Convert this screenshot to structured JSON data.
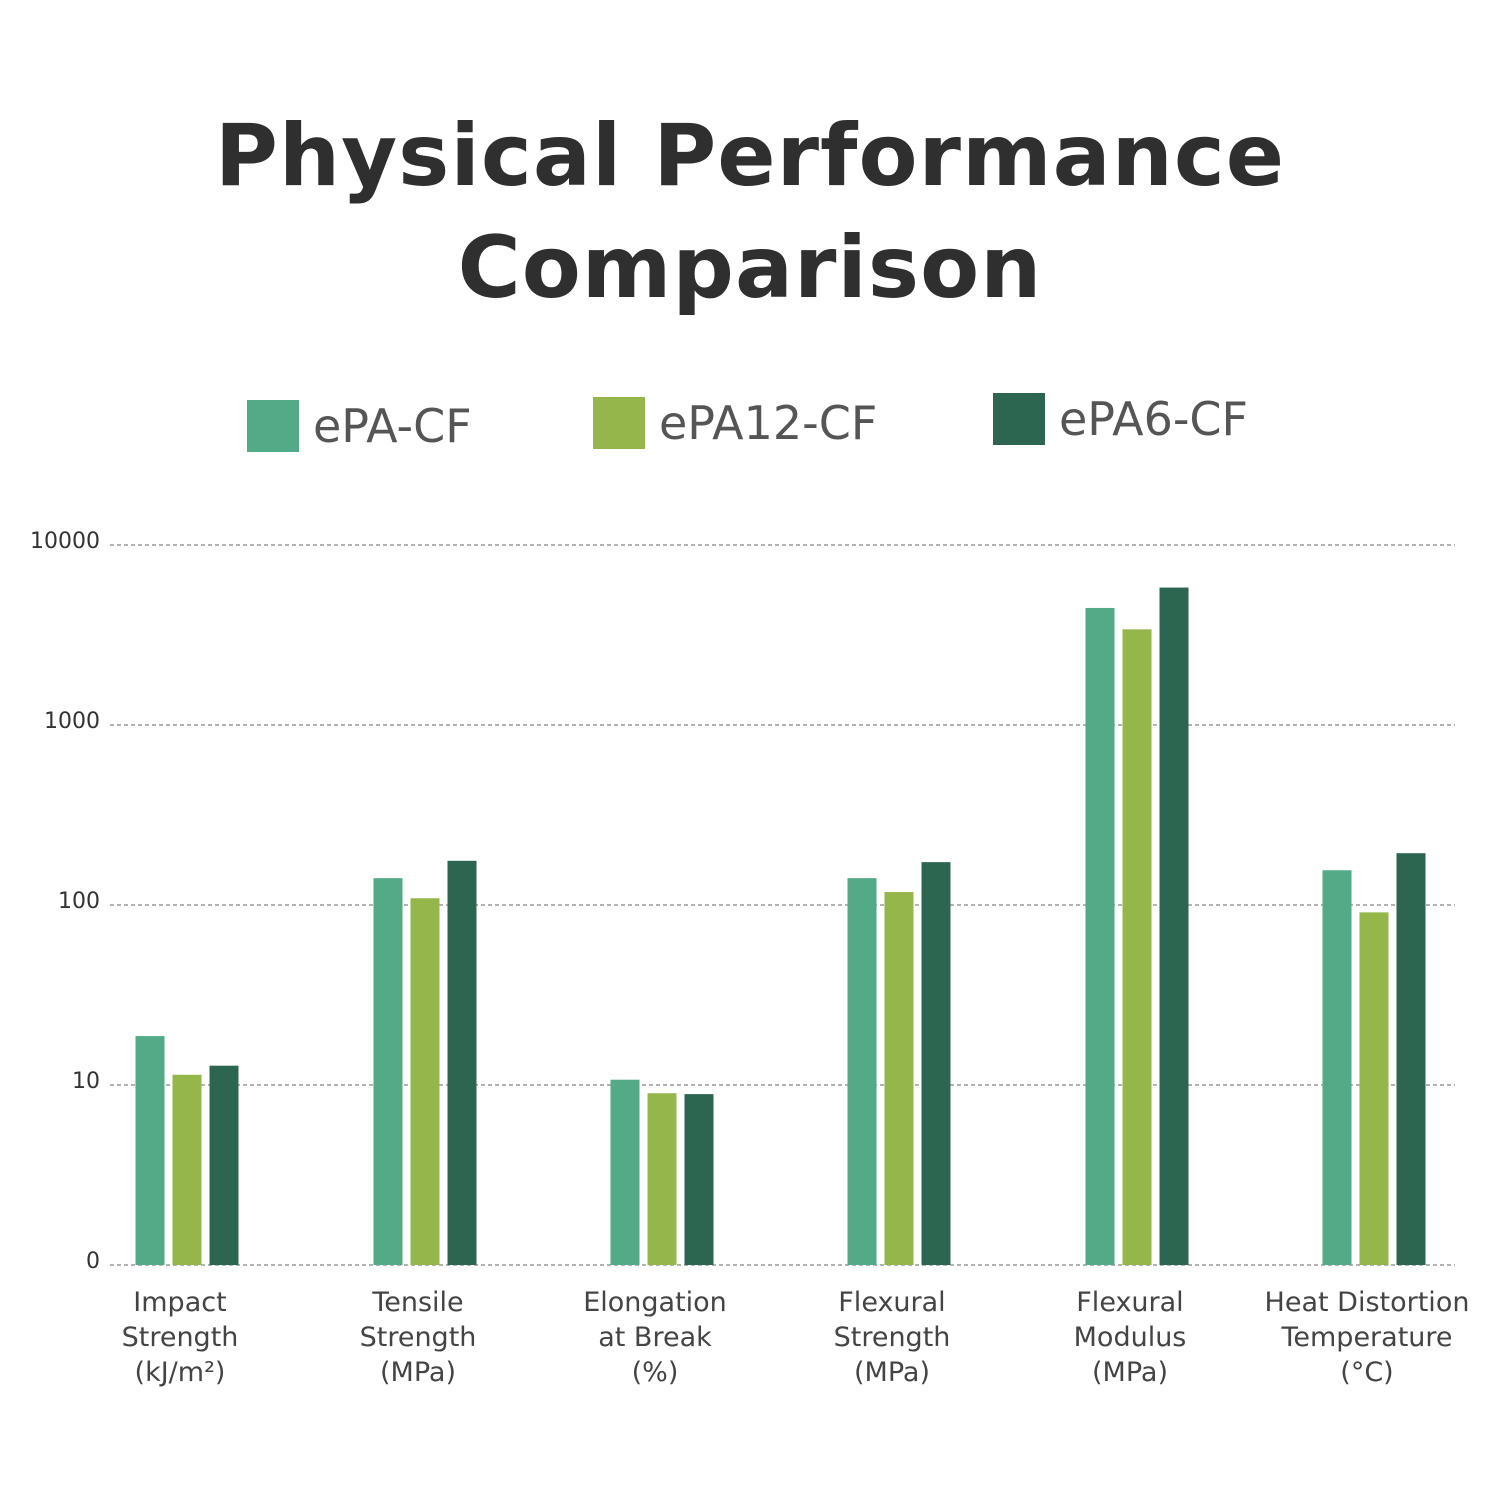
{
  "chart_data": {
    "type": "bar",
    "title": "Physical Performance Comparison",
    "y_scale": "log",
    "ylim": [
      1,
      10000
    ],
    "y_ticks": [
      {
        "value": 1,
        "label": "0"
      },
      {
        "value": 10,
        "label": "10"
      },
      {
        "value": 100,
        "label": "100"
      },
      {
        "value": 1000,
        "label": "1000"
      },
      {
        "value": 10000,
        "label": "10000"
      }
    ],
    "grid": "horizontal dashed",
    "legend_position": "top",
    "categories": [
      [
        "Impact",
        "Strength",
        "(kJ/m²)"
      ],
      [
        "Tensile",
        "Strength",
        "(MPa)"
      ],
      [
        "Elongation",
        "at Break",
        "(%)"
      ],
      [
        "Flexural",
        "Strength",
        "(MPa)"
      ],
      [
        "Flexural",
        "Modulus",
        "(MPa)"
      ],
      [
        "Heat Distortion",
        "Temperature",
        "(°C)"
      ]
    ],
    "series": [
      {
        "name": "ePA-CF",
        "color": "#52ab86",
        "values": [
          18.7,
          141,
          10.7,
          141,
          4470,
          156
        ]
      },
      {
        "name": "ePA12-CF",
        "color": "#95b64a",
        "values": [
          11.4,
          109,
          9.0,
          118,
          3400,
          91
        ]
      },
      {
        "name": "ePA6-CF",
        "color": "#2d6650",
        "values": [
          12.8,
          176,
          8.9,
          173,
          5800,
          194
        ]
      }
    ]
  }
}
